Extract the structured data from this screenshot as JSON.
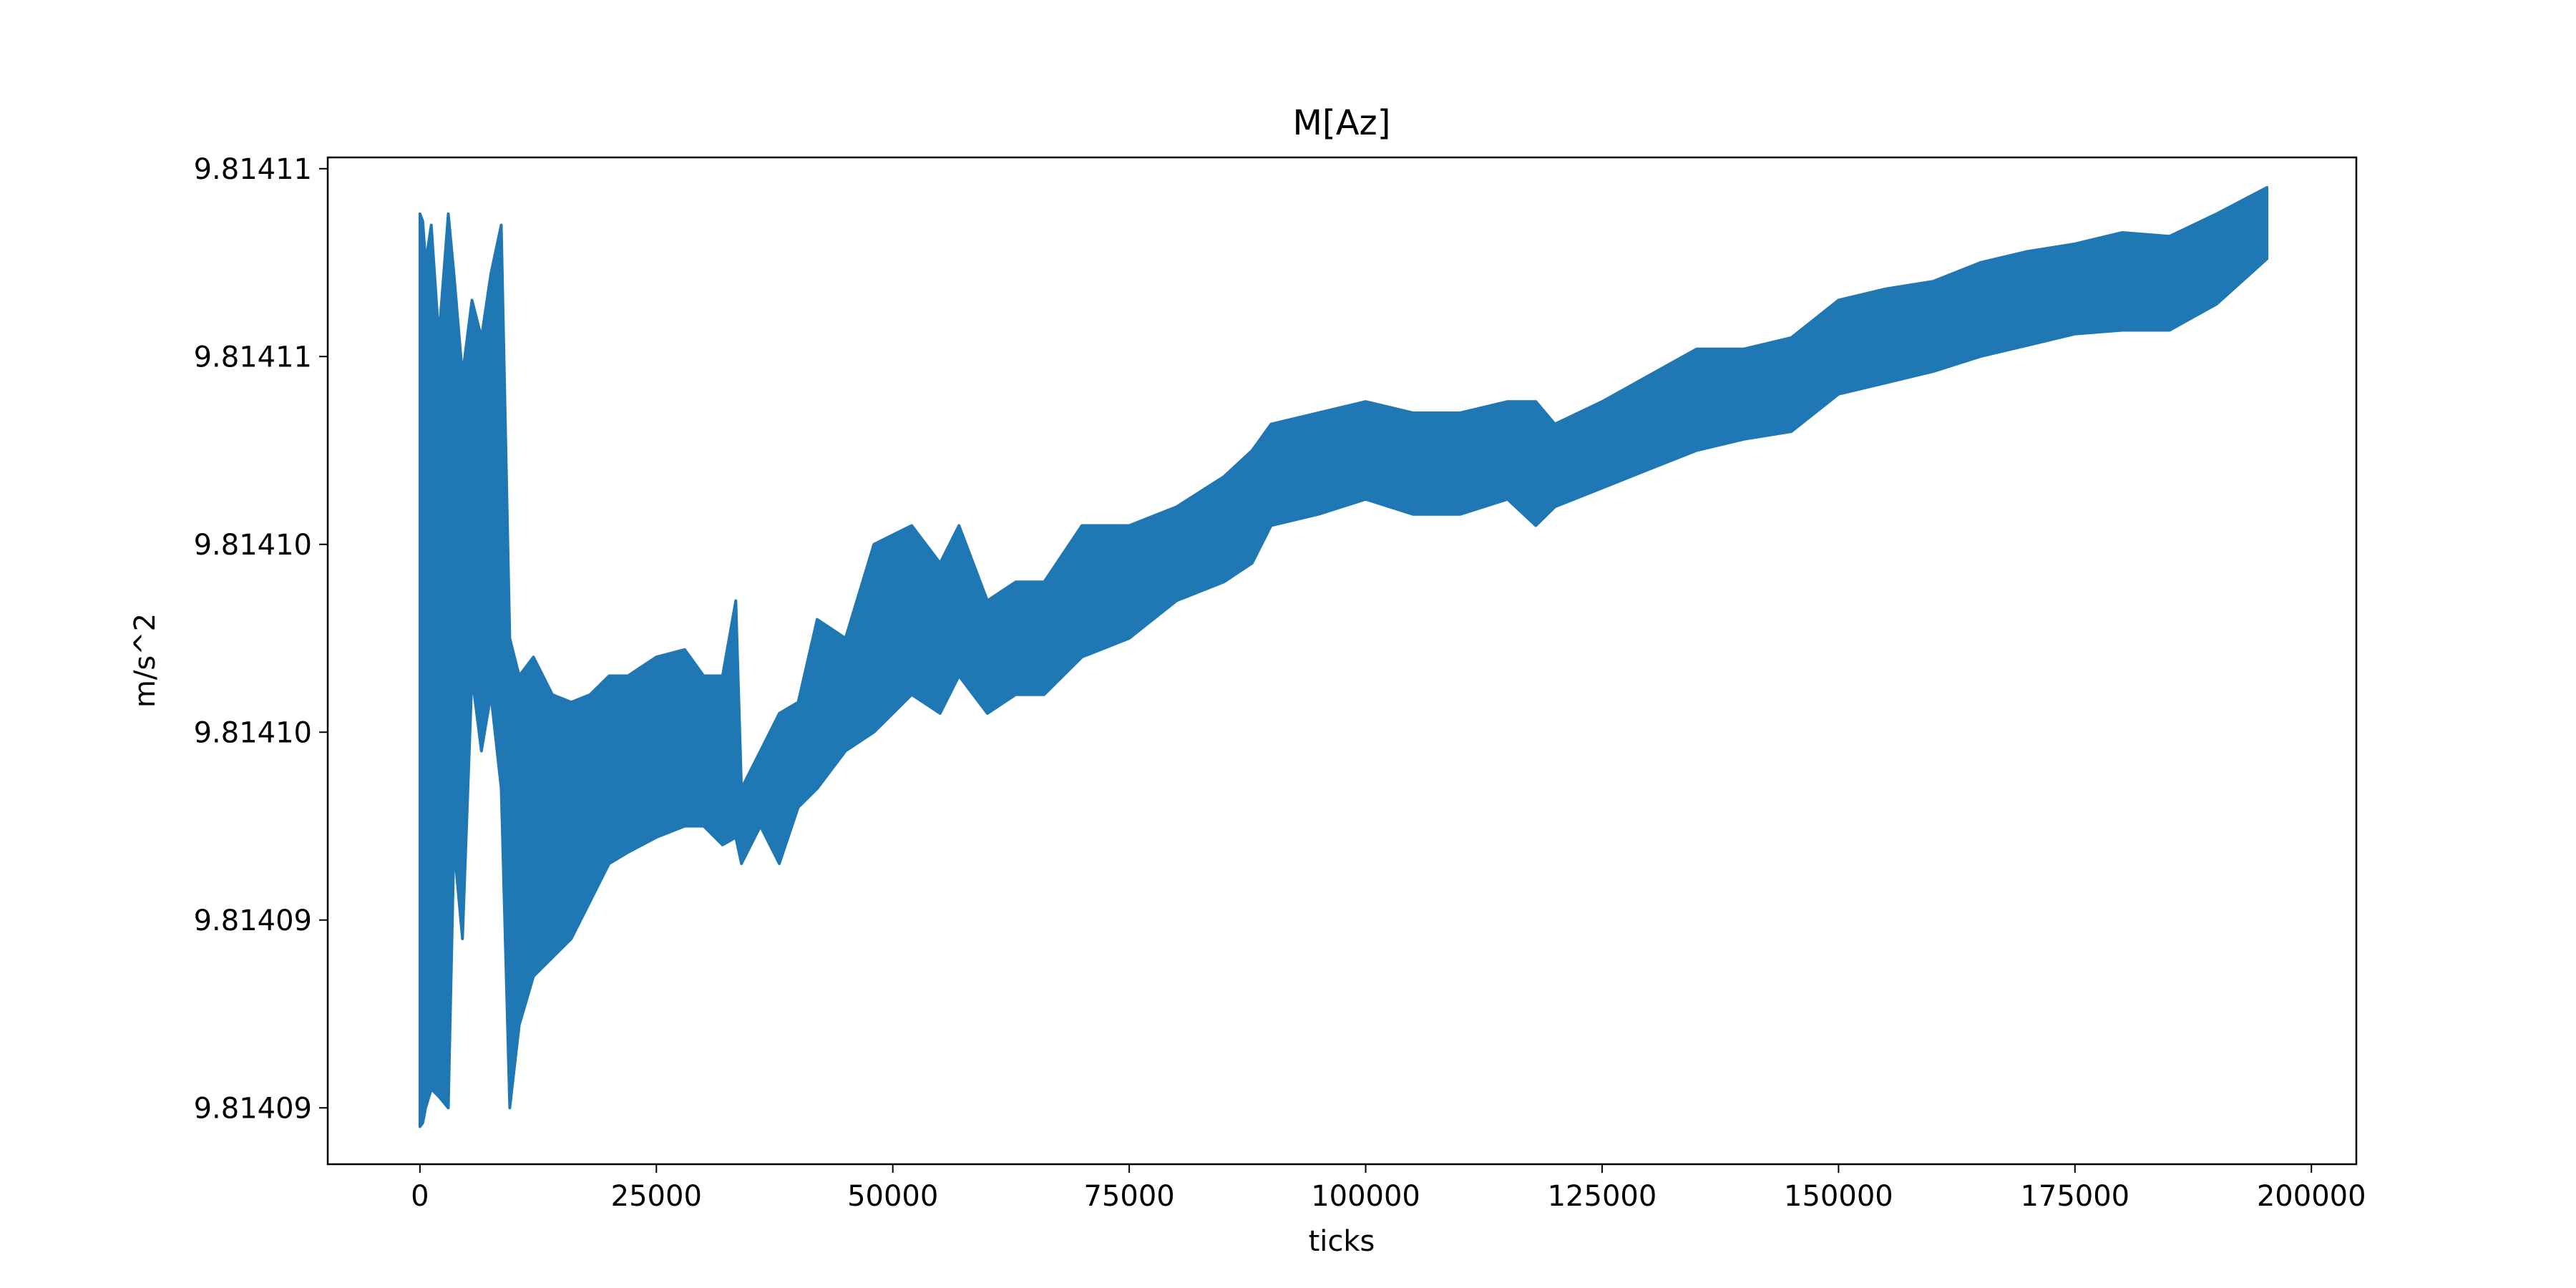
{
  "chart_data": {
    "type": "line",
    "title": "M[Az]",
    "xlabel": "ticks",
    "ylabel": "m/s^2",
    "xlim": [
      -9750,
      204750
    ],
    "ylim": [
      9.8140875,
      9.8141143
    ],
    "xticks": [
      0,
      25000,
      50000,
      75000,
      100000,
      125000,
      150000,
      175000,
      200000
    ],
    "xtick_labels": [
      "0",
      "25000",
      "50000",
      "75000",
      "100000",
      "125000",
      "150000",
      "175000",
      "200000"
    ],
    "yticks": [
      9.814089,
      9.814094,
      9.814099,
      9.814104,
      9.814109,
      9.814114
    ],
    "ytick_labels": [
      "9.81409",
      "9.81409",
      "9.81410",
      "9.81410",
      "9.81411",
      "9.81411"
    ],
    "grid": false,
    "legend": "none",
    "series": [
      {
        "color": "#1f77b4",
        "note_count": 0,
        "x": [
          0,
          300,
          600,
          1200,
          2000,
          3000,
          3600,
          4500,
          5500,
          6500,
          7500,
          8600,
          9500,
          10500,
          12000,
          14000,
          16000,
          18000,
          20000,
          22000,
          25000,
          28000,
          30000,
          32000,
          33400,
          34000,
          36000,
          38000,
          40000,
          42000,
          45000,
          48000,
          52000,
          55000,
          57000,
          60000,
          63000,
          66000,
          70000,
          75000,
          80000,
          85000,
          88000,
          90000,
          95000,
          100000,
          105000,
          110000,
          115000,
          118000,
          120000,
          125000,
          130000,
          135000,
          140000,
          145000,
          150000,
          155000,
          160000,
          165000,
          170000,
          175000,
          180000,
          185000,
          190000,
          195300
        ],
        "upper": [
          9.8141128,
          9.8141126,
          9.8141115,
          9.8141125,
          9.8141095,
          9.8141128,
          9.8141112,
          9.8141085,
          9.8141105,
          9.8141095,
          9.8141112,
          9.8141125,
          9.8141015,
          9.8141005,
          9.814101,
          9.8141,
          9.8140998,
          9.8141,
          9.8141005,
          9.8141005,
          9.814101,
          9.8141012,
          9.8141005,
          9.8141005,
          9.8141025,
          9.8140975,
          9.8140985,
          9.8140995,
          9.8140998,
          9.814102,
          9.8141015,
          9.814104,
          9.8141045,
          9.8141035,
          9.8141045,
          9.8141025,
          9.814103,
          9.814103,
          9.8141045,
          9.8141045,
          9.814105,
          9.8141058,
          9.8141065,
          9.8141072,
          9.8141075,
          9.8141078,
          9.8141075,
          9.8141075,
          9.8141078,
          9.8141078,
          9.8141072,
          9.8141078,
          9.8141085,
          9.8141092,
          9.8141092,
          9.8141095,
          9.8141105,
          9.8141108,
          9.814111,
          9.8141115,
          9.8141118,
          9.814112,
          9.8141123,
          9.8141122,
          9.8141128,
          9.8141135
        ],
        "lower": [
          9.8140885,
          9.8140886,
          9.814089,
          9.8140895,
          9.8140893,
          9.814089,
          9.814096,
          9.8140935,
          9.8141005,
          9.8140985,
          9.8141,
          9.8140975,
          9.814089,
          9.8140912,
          9.8140925,
          9.814093,
          9.8140935,
          9.8140945,
          9.8140955,
          9.8140958,
          9.8140962,
          9.8140965,
          9.8140965,
          9.814096,
          9.8140962,
          9.8140955,
          9.8140965,
          9.8140955,
          9.814097,
          9.8140975,
          9.8140985,
          9.814099,
          9.8141,
          9.8140995,
          9.8141005,
          9.8140995,
          9.8141,
          9.8141,
          9.814101,
          9.8141015,
          9.8141025,
          9.814103,
          9.8141035,
          9.8141045,
          9.8141048,
          9.8141052,
          9.8141048,
          9.8141048,
          9.8141052,
          9.8141045,
          9.814105,
          9.8141055,
          9.814106,
          9.8141065,
          9.8141068,
          9.814107,
          9.814108,
          9.8141083,
          9.8141086,
          9.814109,
          9.8141093,
          9.8141096,
          9.8141097,
          9.8141097,
          9.8141104,
          9.8141116
        ]
      }
    ]
  }
}
